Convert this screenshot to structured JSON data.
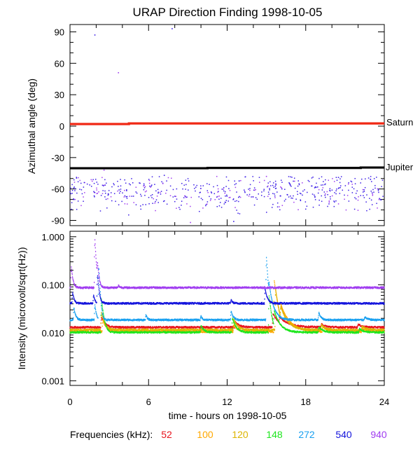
{
  "colors": {
    "f52": "#e8141e",
    "f100": "#ffa800",
    "f120": "#dcb400",
    "f148": "#1ee61e",
    "f272": "#19a0f0",
    "f540": "#1414dc",
    "f940": "#a03cf0",
    "saturn": "#f02814",
    "jupiter": "#000000",
    "scatter": "#3c1ee6"
  },
  "chart_data": [
    {
      "type": "scatter",
      "title": "URAP Direction Finding  1998-10-05",
      "ylabel": "Azimuthal angle (deg)",
      "xlim": [
        0,
        24
      ],
      "ylim": [
        -95,
        97
      ],
      "yticks": [
        "90",
        "60",
        "30",
        "0",
        "-30",
        "-60",
        "-90"
      ],
      "ytick_values": [
        90,
        60,
        30,
        0,
        -30,
        -60,
        -90
      ],
      "grid": false,
      "series": [
        {
          "name": "Saturn",
          "x": [
            0,
            4.5,
            4.5,
            24
          ],
          "y": [
            2,
            2,
            2.6,
            2.6
          ]
        },
        {
          "name": "Jupiter",
          "x": [
            0,
            10.5,
            10.5,
            22.2,
            22.2,
            24
          ],
          "y": [
            -40.2,
            -40.2,
            -39.9,
            -39.9,
            -39.5,
            -39.5
          ]
        }
      ],
      "outliers": {
        "x": [
          1.9,
          3.7,
          7.8,
          2.6,
          7.2,
          15.0,
          20.5,
          9.2,
          12.5
        ],
        "y": [
          87,
          51,
          93,
          -42,
          -47,
          -48,
          -49,
          -92,
          -91
        ]
      },
      "cluster": {
        "center": -63,
        "spread_low": -90,
        "spread_high": -48
      }
    },
    {
      "type": "line",
      "ylabel": "Intensity (microvolt/sqrt(Hz))",
      "xlabel": "time - hours on 1998-10-05",
      "xlim": [
        0,
        24
      ],
      "xticks": [
        "0",
        "6",
        "12",
        "18",
        "24"
      ],
      "xtick_values": [
        0,
        6,
        12,
        18,
        24
      ],
      "ylim": [
        0.0008,
        1.3
      ],
      "yscale": "log",
      "yticks": [
        "1.000",
        "0.100",
        "0.010",
        "0.001"
      ],
      "ytick_values": [
        1,
        0.1,
        0.01,
        0.001
      ],
      "legend_label": "Frequencies (kHz):",
      "series": [
        {
          "name": "52",
          "baseline": 0.013,
          "bursts": [
            [
              2.4,
              0.008,
              0.25
            ],
            [
              12.6,
              0.004,
              0.3
            ],
            [
              15.5,
              0.012,
              0.4
            ],
            [
              16.0,
              0.005,
              0.8
            ],
            [
              19.2,
              0.002,
              0.3
            ],
            [
              22.0,
              0.002,
              0.3
            ]
          ]
        },
        {
          "name": "100",
          "baseline": 0.0105,
          "bursts": [
            [
              2.5,
              0.008,
              0.25
            ],
            [
              12.5,
              0.004,
              0.3
            ],
            [
              15.6,
              0.11,
              0.2
            ],
            [
              16.1,
              0.02,
              0.6
            ],
            [
              19.3,
              0.003,
              0.3
            ],
            [
              22.3,
              0.002,
              0.3
            ]
          ]
        },
        {
          "name": "120",
          "baseline": 0.0115,
          "bursts": [
            [
              2.4,
              0.015,
              0.2
            ],
            [
              12.5,
              0.008,
              0.25
            ],
            [
              15.7,
              0.07,
              0.2
            ],
            [
              16.1,
              0.015,
              0.5
            ],
            [
              19.2,
              0.003,
              0.3
            ],
            [
              22.3,
              0.002,
              0.3
            ]
          ]
        },
        {
          "name": "148",
          "baseline": 0.0102,
          "bursts": [
            [
              2.4,
              0.04,
              0.15
            ],
            [
              10.0,
              0.004,
              0.2
            ],
            [
              12.4,
              0.01,
              0.25
            ],
            [
              15.2,
              0.05,
              0.15
            ],
            [
              15.6,
              0.015,
              0.4
            ],
            [
              19.0,
              0.003,
              0.3
            ],
            [
              22.1,
              0.002,
              0.3
            ]
          ]
        },
        {
          "name": "272",
          "baseline": 0.0185,
          "bursts": [
            [
              0.3,
              0.015,
              0.12
            ],
            [
              1.9,
              0.02,
              0.1
            ],
            [
              2.2,
              0.22,
              0.08
            ],
            [
              5.8,
              0.005,
              0.1
            ],
            [
              10.0,
              0.004,
              0.1
            ],
            [
              12.3,
              0.01,
              0.15
            ],
            [
              15.0,
              0.35,
              0.1
            ],
            [
              15.2,
              0.05,
              0.3
            ],
            [
              19.0,
              0.008,
              0.15
            ],
            [
              22.5,
              0.003,
              0.2
            ]
          ]
        },
        {
          "name": "540",
          "baseline": 0.041,
          "bursts": [
            [
              0.2,
              0.03,
              0.1
            ],
            [
              1.8,
              0.02,
              0.1
            ],
            [
              2.1,
              0.12,
              0.1
            ],
            [
              12.3,
              0.008,
              0.1
            ],
            [
              14.9,
              0.04,
              0.15
            ]
          ]
        },
        {
          "name": "940",
          "baseline": 0.087,
          "bursts": [
            [
              0.1,
              0.15,
              0.1
            ],
            [
              1.9,
              0.8,
              0.08
            ],
            [
              2.1,
              0.15,
              0.1
            ],
            [
              3.7,
              0.01,
              0.1
            ]
          ]
        }
      ]
    }
  ],
  "legend": {
    "label": "Frequencies (kHz):",
    "items": [
      "52",
      "100",
      "120",
      "148",
      "272",
      "540",
      "940"
    ]
  },
  "labels": {
    "saturn": "Saturn",
    "jupiter": "Jupiter"
  }
}
